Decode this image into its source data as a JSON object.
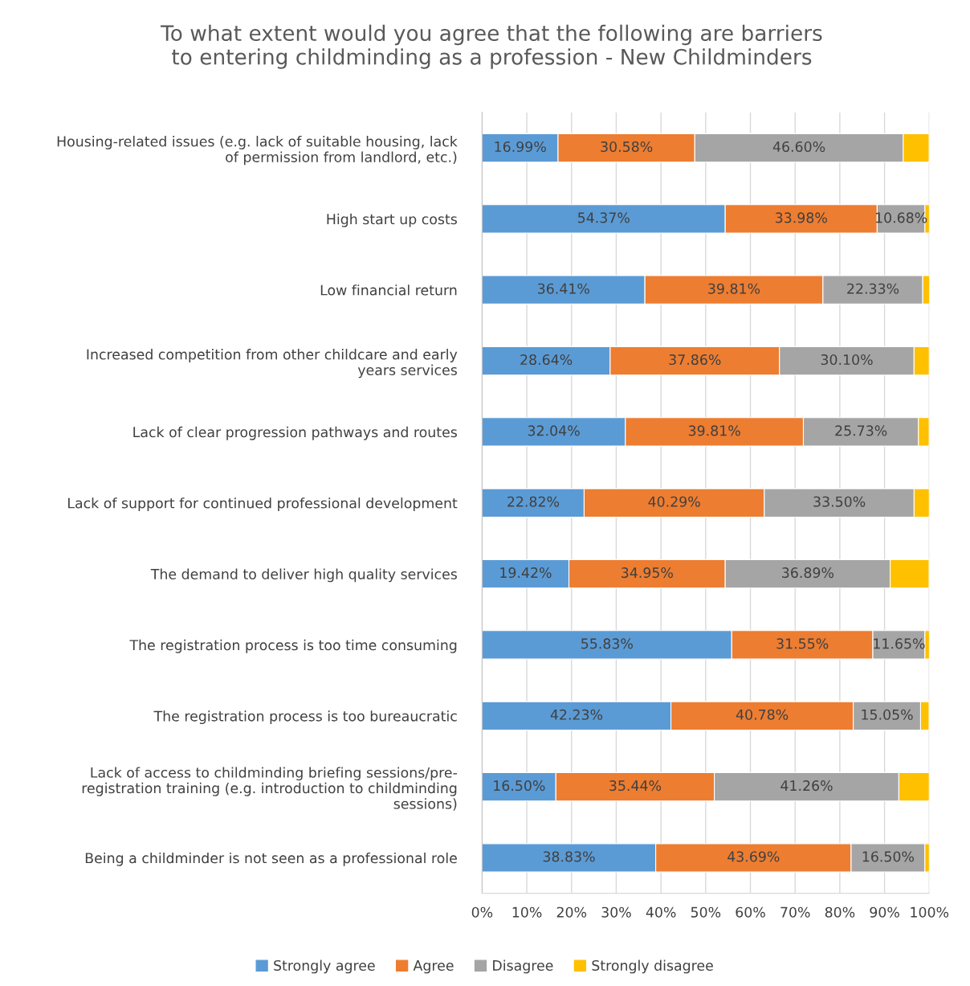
{
  "chart_data": {
    "type": "bar",
    "orientation": "horizontal",
    "stacked": true,
    "title": "To what extent would you agree that the following are barriers\nto entering childminding as a profession - New Childminders",
    "categories": [
      "Housing-related issues (e.g. lack of suitable housing, lack\nof permission from landlord, etc.)",
      "High start up costs",
      "Low financial return",
      "Increased competition from other childcare and early\nyears services",
      "Lack of clear progression pathways and routes",
      "Lack of support for continued professional development",
      "The demand to deliver high quality services",
      "The registration process is too time consuming",
      "The registration process is too bureaucratic",
      "Lack of access to childminding briefing sessions/pre-\nregistration training (e.g. introduction to childminding\nsessions)",
      "Being a childminder is not seen as a professional role"
    ],
    "series": [
      {
        "name": "Strongly agree",
        "color": "#5b9bd5",
        "values": [
          16.99,
          54.37,
          36.41,
          28.64,
          32.04,
          22.82,
          19.42,
          55.83,
          42.23,
          16.5,
          38.83
        ],
        "value_labels": [
          "16.99%",
          "54.37%",
          "36.41%",
          "28.64%",
          "32.04%",
          "22.82%",
          "19.42%",
          "55.83%",
          "42.23%",
          "16.50%",
          "38.83%"
        ]
      },
      {
        "name": "Agree",
        "color": "#ed7d31",
        "values": [
          30.58,
          33.98,
          39.81,
          37.86,
          39.81,
          40.29,
          34.95,
          31.55,
          40.78,
          35.44,
          43.69
        ],
        "value_labels": [
          "30.58%",
          "33.98%",
          "39.81%",
          "37.86%",
          "39.81%",
          "40.29%",
          "34.95%",
          "31.55%",
          "40.78%",
          "35.44%",
          "43.69%"
        ]
      },
      {
        "name": "Disagree",
        "color": "#a5a5a5",
        "values": [
          46.6,
          10.68,
          22.33,
          30.1,
          25.73,
          33.5,
          36.89,
          11.65,
          15.05,
          41.26,
          16.5
        ],
        "value_labels": [
          "46.60%",
          "10.68%",
          "22.33%",
          "30.10%",
          "25.73%",
          "33.50%",
          "36.89%",
          "11.65%",
          "15.05%",
          "41.26%",
          "16.50%"
        ]
      },
      {
        "name": "Strongly disagree",
        "color": "#ffc000",
        "values": [
          5.8,
          1.0,
          1.5,
          3.4,
          2.4,
          3.4,
          8.7,
          1.0,
          1.9,
          6.8,
          1.0
        ]
      }
    ],
    "xlim": [
      0,
      100
    ],
    "xticks": [
      {
        "value": 0,
        "label": "0%"
      },
      {
        "value": 10,
        "label": "10%"
      },
      {
        "value": 20,
        "label": "20%"
      },
      {
        "value": 30,
        "label": "30%"
      },
      {
        "value": 40,
        "label": "40%"
      },
      {
        "value": 50,
        "label": "50%"
      },
      {
        "value": 60,
        "label": "60%"
      },
      {
        "value": 70,
        "label": "70%"
      },
      {
        "value": 80,
        "label": "80%"
      },
      {
        "value": 90,
        "label": "90%"
      },
      {
        "value": 100,
        "label": "100%"
      }
    ],
    "grid": "x",
    "legend": "bottom"
  }
}
